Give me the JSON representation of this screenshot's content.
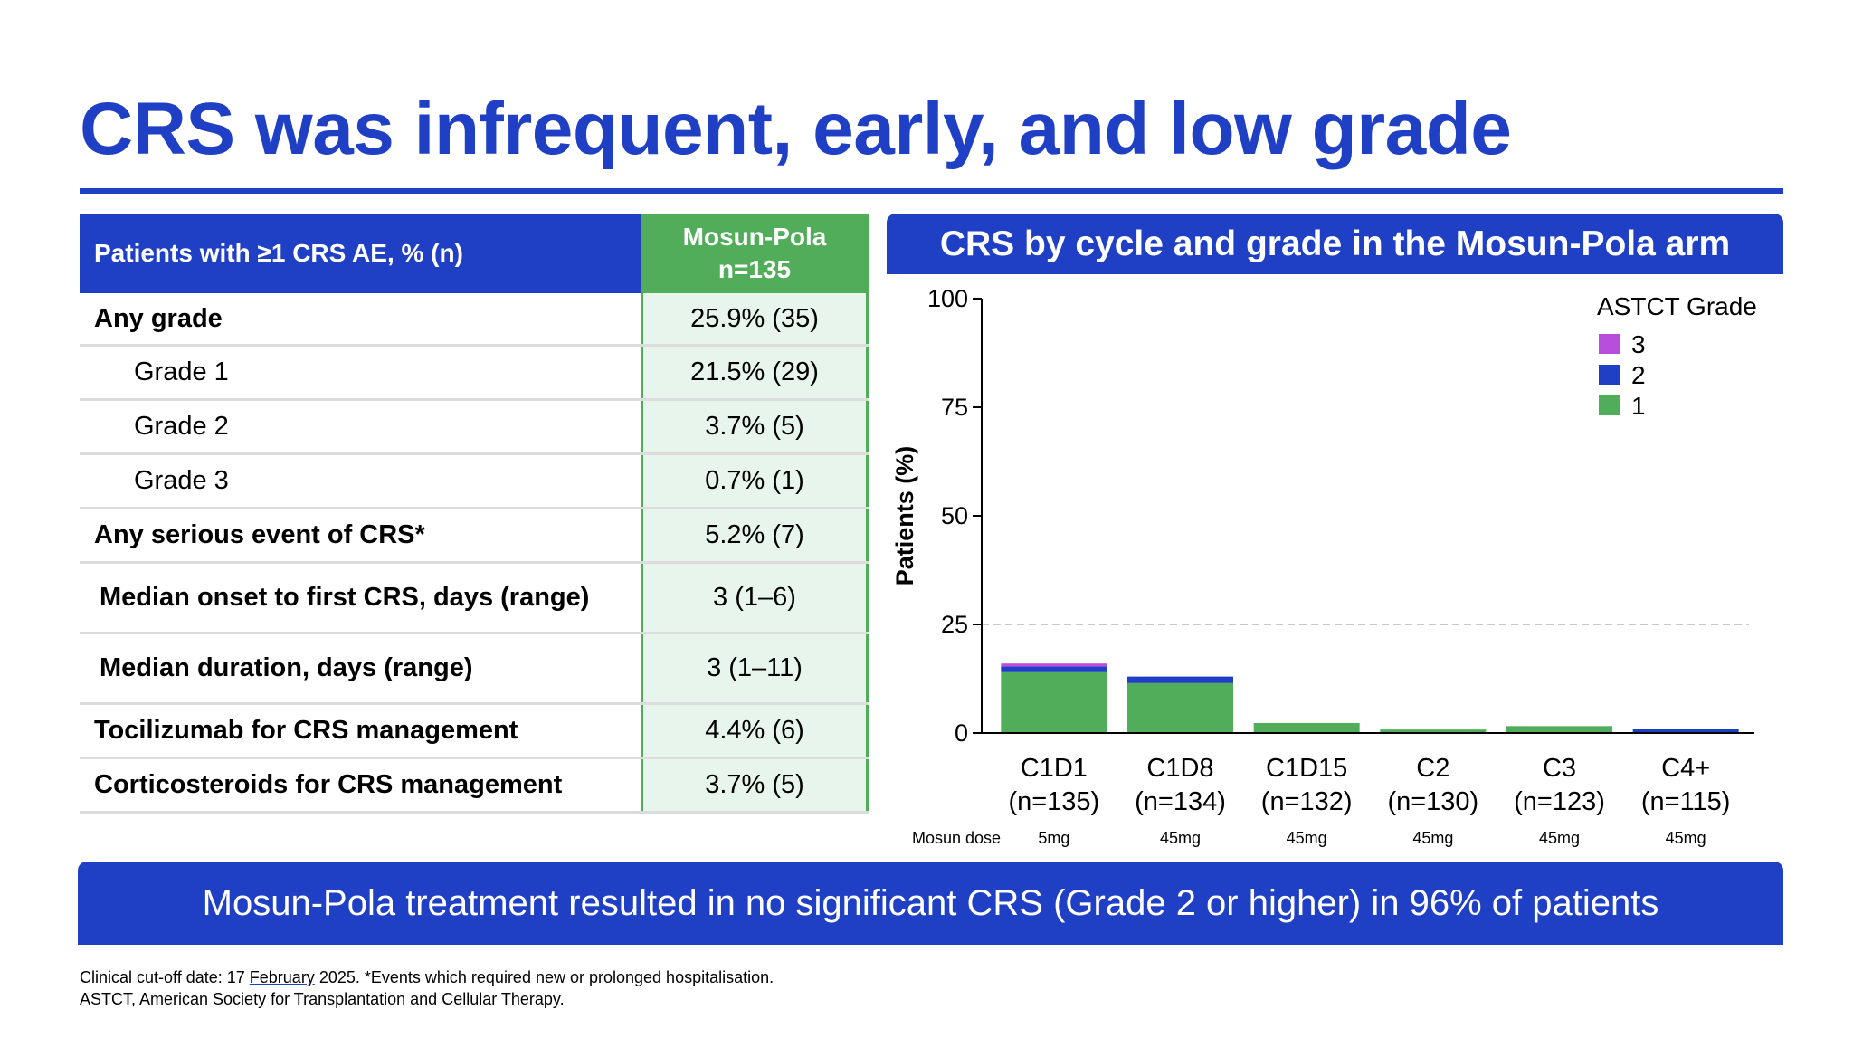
{
  "title": "CRS was infrequent, early, and low grade",
  "table": {
    "header_left": "Patients with ≥1 CRS AE, % (n)",
    "header_right_line1": "Mosun-Pola",
    "header_right_line2": "n=135",
    "rows": [
      {
        "label": "Any grade",
        "value": "25.9% (35)"
      },
      {
        "label": "Grade 1",
        "value": "21.5% (29)"
      },
      {
        "label": "Grade 2",
        "value": "3.7% (5)"
      },
      {
        "label": "Grade 3",
        "value": "0.7% (1)"
      },
      {
        "label": "Any serious event of CRS*",
        "value": "5.2% (7)"
      },
      {
        "label": "Median onset to first CRS, days (range)",
        "value": "3 (1–6)"
      },
      {
        "label": "Median duration, days (range)",
        "value": "3 (1–11)"
      },
      {
        "label": "Tocilizumab for CRS management",
        "value": "4.4% (6)"
      },
      {
        "label": "Corticosteroids for CRS management",
        "value": "3.7% (5)"
      }
    ]
  },
  "chart_header": "CRS by cycle and grade in the Mosun-Pola arm",
  "chart_data": {
    "type": "bar",
    "stacked": true,
    "categories": [
      "C1D1",
      "C1D8",
      "C1D15",
      "C2",
      "C3",
      "C4+"
    ],
    "category_n": [
      "(n=135)",
      "(n=134)",
      "(n=132)",
      "(n=130)",
      "(n=123)",
      "(n=115)"
    ],
    "dose_label": "Mosun dose",
    "doses": [
      "5mg",
      "45mg",
      "45mg",
      "45mg",
      "45mg",
      "45mg"
    ],
    "ylabel": "Patients (%)",
    "ylim": [
      0,
      100
    ],
    "yticks": [
      0,
      25,
      50,
      75,
      100
    ],
    "reference_line": 25,
    "legend_title": "ASTCT Grade",
    "legend_position": "top-right",
    "series": [
      {
        "name": "1",
        "color": "#52ad5a",
        "values": [
          14.0,
          11.5,
          2.3,
          0.8,
          1.6,
          0.0
        ]
      },
      {
        "name": "2",
        "color": "#1f3fc4",
        "values": [
          1.3,
          1.5,
          0.0,
          0.0,
          0.0,
          0.9
        ]
      },
      {
        "name": "3",
        "color": "#b74fdc",
        "values": [
          0.7,
          0.0,
          0.0,
          0.0,
          0.0,
          0.0
        ]
      }
    ]
  },
  "banner": "Mosun-Pola treatment resulted in no significant CRS (Grade 2 or higher) in 96% of patients",
  "footnotes": {
    "line1_prefix": "Clinical cut-off date: 17 ",
    "line1_month": "February",
    "line1_suffix": " 2025. *Events which required new or prolonged hospitalisation.",
    "line2": "ASTCT, American Society for Transplantation and Cellular Therapy."
  }
}
